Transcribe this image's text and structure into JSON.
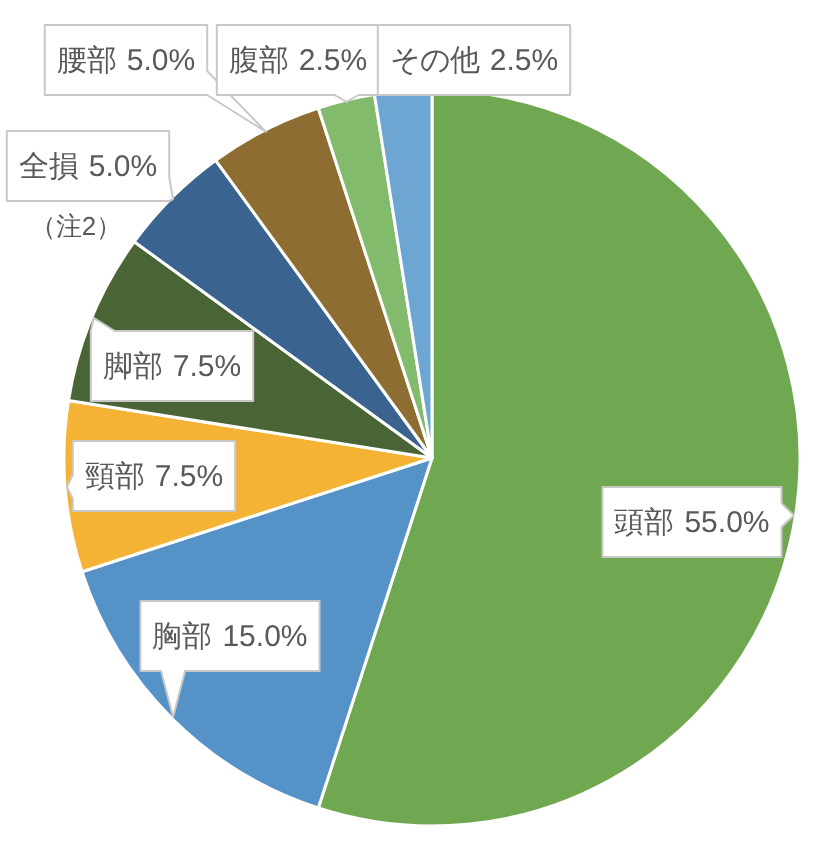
{
  "chart_data": {
    "type": "pie",
    "categories": [
      "頭部",
      "胸部",
      "頸部",
      "脚部",
      "全損",
      "腰部",
      "腹部",
      "その他"
    ],
    "values": [
      55,
      15,
      7.5,
      7.5,
      5,
      5,
      2.5,
      2.5
    ],
    "value_labels": [
      "55.0%",
      "15.0%",
      "7.5%",
      "7.5%",
      "5.0%",
      "5.0%",
      "2.5%",
      "2.5%"
    ],
    "colors": [
      "#70a852",
      "#5592c8",
      "#f5b335",
      "#4a6535",
      "#3a6390",
      "#8e6d33",
      "#83bb6c",
      "#6ea6d3"
    ],
    "annotations": [
      "（注2）"
    ]
  }
}
